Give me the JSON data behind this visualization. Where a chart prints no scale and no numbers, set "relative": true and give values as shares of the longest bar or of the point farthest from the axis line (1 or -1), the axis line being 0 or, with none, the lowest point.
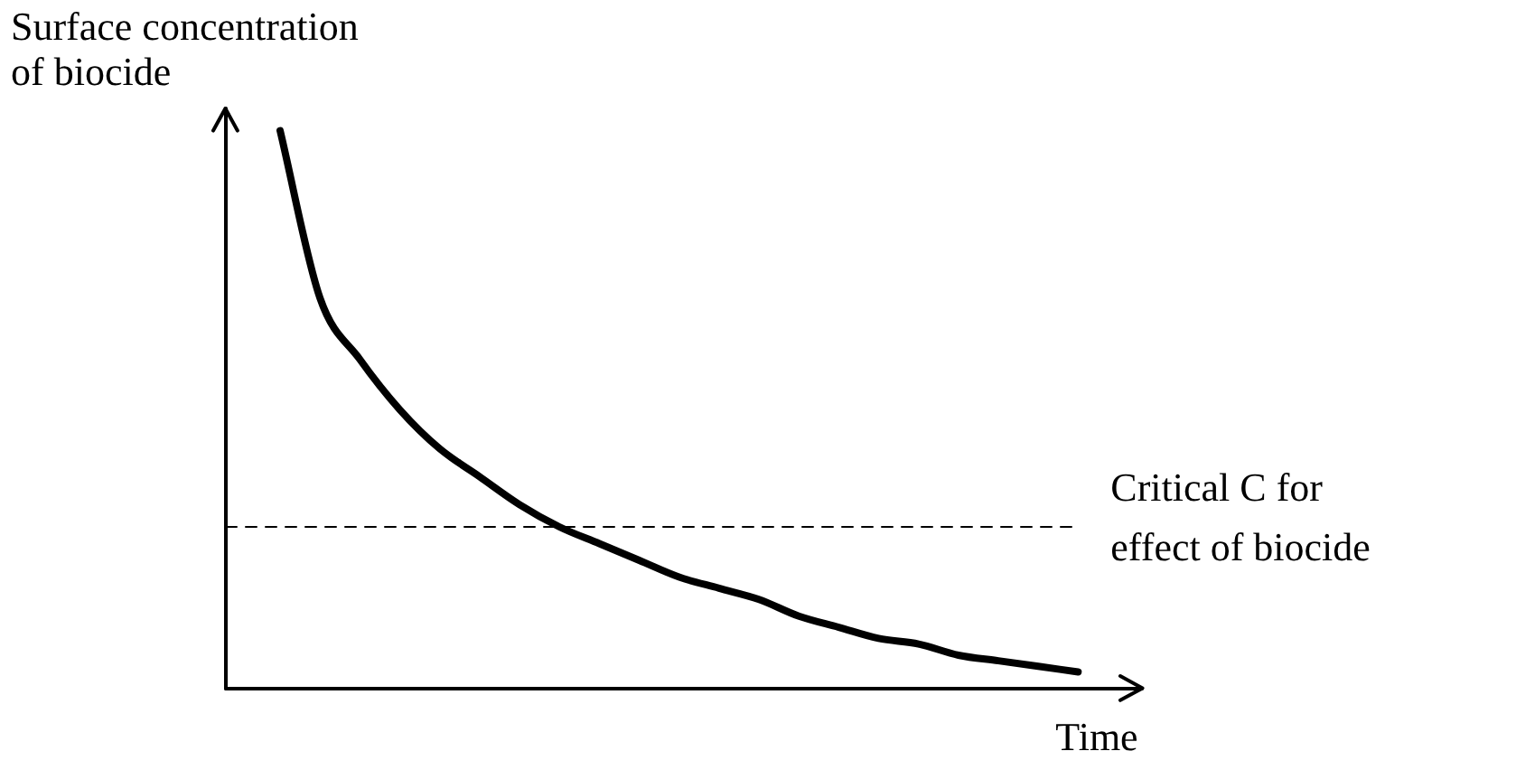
{
  "chart_data": {
    "type": "line",
    "relative": true,
    "ylabel": "Surface concentration of biocide",
    "xlabel": "Time",
    "categories": [
      null,
      null,
      null,
      null,
      null,
      null,
      null,
      null,
      null,
      null,
      null,
      null,
      null,
      null,
      null,
      null,
      null,
      null,
      null,
      null,
      null
    ],
    "series": [
      {
        "color": "#000000",
        "values": [
          1.0,
          0.7,
          0.59,
          0.5,
          0.43,
          0.38,
          0.33,
          0.29,
          0.26,
          0.23,
          0.2,
          0.18,
          0.16,
          0.13,
          0.11,
          0.09,
          0.08,
          0.06,
          0.05,
          0.04,
          0.03
        ]
      }
    ],
    "ref_lines": [
      {
        "axis": "y",
        "value": 0.29,
        "label": "Critical C for effect of biocide",
        "line_style": "dashed",
        "color": "#000000"
      }
    ],
    "legend": false,
    "marker": "none",
    "line_style": "solid"
  }
}
